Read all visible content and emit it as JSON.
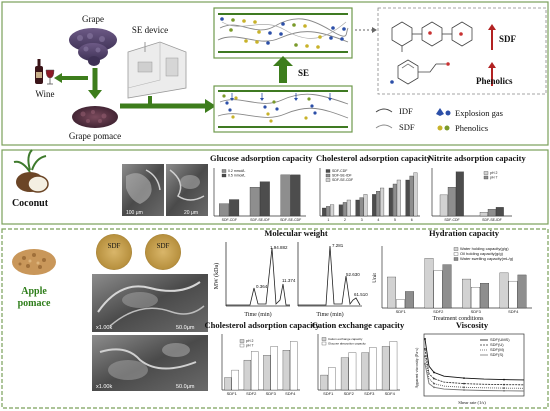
{
  "top": {
    "grape": "Grape",
    "wine": "Wine",
    "pomace": "Grape pomace",
    "device": "SE device",
    "se_arrow": "SE",
    "sdf_up": "SDF",
    "phenolics_up": "Phenolics",
    "legend": {
      "idf": "IDF",
      "sdf": "SDF",
      "gas": "Explosion gas",
      "phenolics": "Phenolics"
    }
  },
  "middle": {
    "fruit": "Coconut",
    "sem": {
      "scale1": "100 μm",
      "scale2": "20 μm"
    },
    "charts": {
      "glucose": {
        "title": "Glucose adsorption capacity",
        "legend": [
          "0.2 mmol/L",
          "0.5 mmol/L"
        ]
      },
      "cholesterol": {
        "title": "Cholesterol adsorption capacity",
        "legend": [
          "SDF-CDF",
          "SDF-SE-IDF",
          "SDF-SE-CDF"
        ]
      },
      "nitrite": {
        "title": "Nitrite adsorption capacity",
        "legend": [
          "pH 2",
          "pH 7"
        ]
      }
    }
  },
  "bottom": {
    "fruit_line1": "Apple",
    "fruit_line2": "pomace",
    "sdf_labels": [
      "SDF",
      "SDF"
    ],
    "sem_mag1": "x1.00k",
    "sem_scale1": "50.0μm",
    "sem_mag2": "x1.00k",
    "sem_scale2": "50.0μm",
    "mw": {
      "title": "Molecular weight",
      "ylabel": "MW (kDa)",
      "xlabel": "Time (min)",
      "xlabel2": "Time (min)",
      "peaks1": [
        "1.94.882",
        "0.364",
        "11.374"
      ],
      "peaks2": [
        "7.281",
        "52.630",
        "61.510"
      ]
    },
    "hydration": {
      "title": "Hydration capacity",
      "legend": [
        "Water holding capacity(g/g)",
        "Oil holding capacity(g/g)",
        "Water swelling capacity(mL/g)"
      ],
      "ylabel": "Unit",
      "xlabel": "Treatment conditions"
    },
    "cholesterol": {
      "title": "Cholesterol adsorption capacity",
      "legend": [
        "pH 2",
        "pH 7"
      ]
    },
    "cation": {
      "title": "Cation exchange capacity",
      "legend": [
        "Cation exchange capacity",
        "Glucose absorption capacity"
      ]
    },
    "viscosity": {
      "title": "Viscosity",
      "legend": [
        "SDF(UMS)",
        "SDF(U)",
        "SDF(M)",
        "SDF(S)"
      ],
      "xlabel": "Shear rate (1/s)",
      "ylabel": "Apparent viscosity (Pa·s)"
    }
  },
  "colors": {
    "green_arrow": "#3d7d1c",
    "border": "#7aa05a",
    "sdf_red": "#b22222",
    "bar_dark": "#4d4d4d",
    "bar_mid": "#8e8e8e",
    "bar_light": "#d2d2d2"
  },
  "chart_data": [
    {
      "type": "bar",
      "title": "Glucose adsorption capacity",
      "categories": [
        "SDF-CDF",
        "SDF-SE-IDF",
        "SDF-SE-CDF"
      ],
      "series": [
        {
          "name": "0.2 mmol/L",
          "values": [
            0.9,
            2.1,
            3.0
          ]
        },
        {
          "name": "0.5 mmol/L",
          "values": [
            1.2,
            2.5,
            3.0
          ]
        }
      ],
      "ylim": [
        0,
        3.5
      ]
    },
    {
      "type": "bar",
      "title": "Cholesterol adsorption capacity",
      "categories": [
        "1",
        "2",
        "3",
        "4",
        "5",
        "6"
      ],
      "series": [
        {
          "name": "SDF-CDF",
          "values": [
            1.0,
            1.4,
            2.0,
            2.7,
            3.5,
            4.5
          ]
        },
        {
          "name": "SDF-SE-IDF",
          "values": [
            1.2,
            1.7,
            2.3,
            3.1,
            4.0,
            5.0
          ]
        },
        {
          "name": "SDF-SE-CDF",
          "values": [
            1.4,
            2.0,
            2.7,
            3.5,
            4.5,
            5.4
          ]
        }
      ],
      "ylim": [
        0,
        6
      ]
    },
    {
      "type": "bar",
      "title": "Nitrite adsorption capacity",
      "categories": [
        "SDF-CDF",
        "SDF-SE-IDF"
      ],
      "series": [
        {
          "name": "pH 2",
          "values": [
            2.2,
            0.4
          ]
        },
        {
          "name": "pH 7",
          "values": [
            3.0,
            0.7
          ]
        },
        {
          "name": "",
          "values": [
            4.6,
            0.9
          ]
        }
      ],
      "ylim": [
        0,
        5
      ]
    },
    {
      "type": "bar",
      "title": "Hydration capacity",
      "categories": [
        "SDF1",
        "SDF2",
        "SDF3",
        "SDF4"
      ],
      "series": [
        {
          "name": "Water holding capacity(g/g)",
          "values": [
            15,
            24,
            14,
            17
          ]
        },
        {
          "name": "Oil holding capacity(g/g)",
          "values": [
            4,
            18,
            10,
            13
          ]
        },
        {
          "name": "Water swelling capacity(mL/g)",
          "values": [
            8,
            21,
            12,
            16
          ]
        }
      ],
      "ylim": [
        0,
        30
      ]
    },
    {
      "type": "bar",
      "title": "Cholesterol adsorption capacity",
      "categories": [
        "SDF1",
        "SDF2",
        "SDF3",
        "SDF4"
      ],
      "series": [
        {
          "name": "pH 2",
          "values": [
            1.0,
            2.4,
            2.8,
            3.2
          ]
        },
        {
          "name": "pH 7",
          "values": [
            1.6,
            3.1,
            3.5,
            3.9
          ]
        }
      ],
      "ylim": [
        0,
        4.5
      ]
    },
    {
      "type": "bar",
      "title": "Cation exchange capacity",
      "categories": [
        "SDF1",
        "SDF2",
        "SDF3",
        "SDF4"
      ],
      "series": [
        {
          "name": "Cation exchange capacity",
          "values": [
            1.2,
            2.6,
            3.0,
            3.5
          ]
        },
        {
          "name": "Glucose absorption capacity",
          "values": [
            1.8,
            3.0,
            3.4,
            3.9
          ]
        }
      ],
      "ylim": [
        0,
        4.5
      ]
    },
    {
      "type": "line",
      "title": "Viscosity",
      "x": [
        1,
        5,
        10,
        20,
        40,
        60,
        80,
        100
      ],
      "series": [
        {
          "name": "SDF(UMS)",
          "values": [
            2.3,
            1.2,
            0.95,
            0.8,
            0.72,
            0.68,
            0.66,
            0.65
          ]
        },
        {
          "name": "SDF(U)",
          "values": [
            1.9,
            0.9,
            0.7,
            0.56,
            0.5,
            0.47,
            0.46,
            0.45
          ]
        },
        {
          "name": "SDF(M)",
          "values": [
            1.6,
            0.7,
            0.5,
            0.4,
            0.35,
            0.33,
            0.32,
            0.31
          ]
        },
        {
          "name": "SDF(S)",
          "values": [
            1.3,
            0.5,
            0.35,
            0.28,
            0.24,
            0.22,
            0.21,
            0.2
          ]
        }
      ],
      "ylim": [
        0,
        2.5
      ],
      "xlim": [
        0,
        100
      ]
    }
  ]
}
